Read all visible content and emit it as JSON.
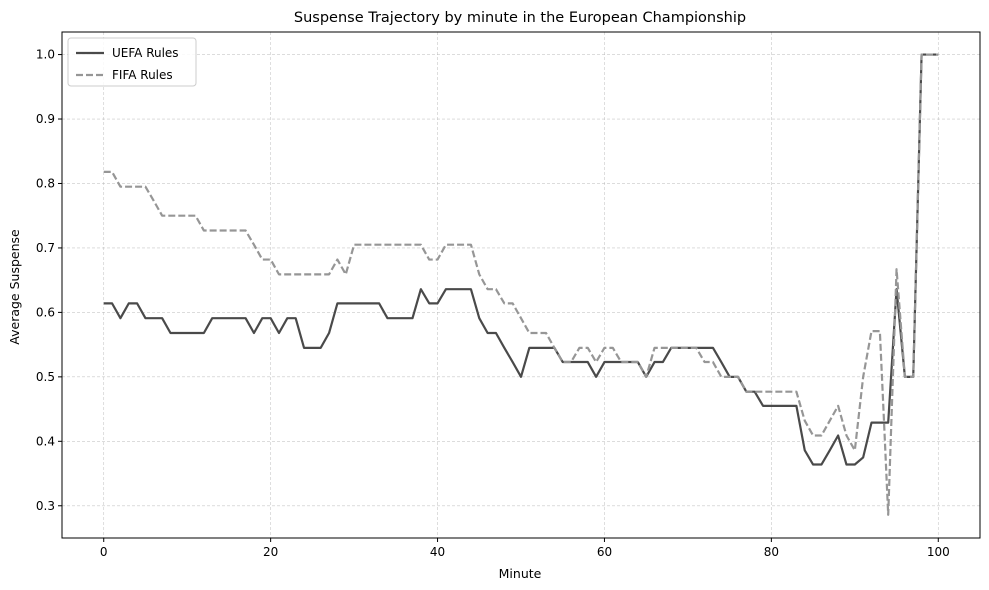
{
  "chart_data": {
    "type": "line",
    "title": "Suspense Trajectory by minute in the European Championship",
    "xlabel": "Minute",
    "ylabel": "Average Suspense",
    "xlim": [
      -5,
      105
    ],
    "ylim": [
      0.25,
      1.035
    ],
    "xticks": [
      0,
      20,
      40,
      60,
      80,
      100
    ],
    "yticks": [
      0.3,
      0.4,
      0.5,
      0.6,
      0.7,
      0.8,
      0.9,
      1.0
    ],
    "ytick_labels": [
      "0.3",
      "0.4",
      "0.5",
      "0.6",
      "0.7",
      "0.8",
      "0.9",
      "1.0"
    ],
    "grid": true,
    "legend_position": "top-left",
    "series": [
      {
        "name": "UEFA Rules",
        "color": "#4a4a4a",
        "style": "solid",
        "points": [
          [
            0,
            0.614
          ],
          [
            1,
            0.614
          ],
          [
            2,
            0.591
          ],
          [
            3,
            0.614
          ],
          [
            4,
            0.614
          ],
          [
            5,
            0.591
          ],
          [
            6,
            0.591
          ],
          [
            7,
            0.591
          ],
          [
            8,
            0.568
          ],
          [
            9,
            0.568
          ],
          [
            10,
            0.568
          ],
          [
            11,
            0.568
          ],
          [
            12,
            0.568
          ],
          [
            13,
            0.591
          ],
          [
            14,
            0.591
          ],
          [
            15,
            0.591
          ],
          [
            16,
            0.591
          ],
          [
            17,
            0.591
          ],
          [
            18,
            0.568
          ],
          [
            19,
            0.591
          ],
          [
            20,
            0.591
          ],
          [
            21,
            0.568
          ],
          [
            22,
            0.591
          ],
          [
            23,
            0.591
          ],
          [
            24,
            0.545
          ],
          [
            25,
            0.545
          ],
          [
            26,
            0.545
          ],
          [
            27,
            0.568
          ],
          [
            28,
            0.614
          ],
          [
            29,
            0.614
          ],
          [
            30,
            0.614
          ],
          [
            31,
            0.614
          ],
          [
            32,
            0.614
          ],
          [
            33,
            0.614
          ],
          [
            34,
            0.591
          ],
          [
            35,
            0.591
          ],
          [
            36,
            0.591
          ],
          [
            37,
            0.591
          ],
          [
            38,
            0.636
          ],
          [
            39,
            0.614
          ],
          [
            40,
            0.614
          ],
          [
            41,
            0.636
          ],
          [
            42,
            0.636
          ],
          [
            43,
            0.636
          ],
          [
            44,
            0.636
          ],
          [
            45,
            0.591
          ],
          [
            46,
            0.568
          ],
          [
            47,
            0.568
          ],
          [
            48,
            0.545
          ],
          [
            49,
            0.523
          ],
          [
            50,
            0.5
          ],
          [
            51,
            0.545
          ],
          [
            52,
            0.545
          ],
          [
            53,
            0.545
          ],
          [
            54,
            0.545
          ],
          [
            55,
            0.523
          ],
          [
            56,
            0.523
          ],
          [
            57,
            0.523
          ],
          [
            58,
            0.523
          ],
          [
            59,
            0.5
          ],
          [
            60,
            0.523
          ],
          [
            61,
            0.523
          ],
          [
            62,
            0.523
          ],
          [
            63,
            0.523
          ],
          [
            64,
            0.523
          ],
          [
            65,
            0.5
          ],
          [
            66,
            0.523
          ],
          [
            67,
            0.523
          ],
          [
            68,
            0.545
          ],
          [
            69,
            0.545
          ],
          [
            70,
            0.545
          ],
          [
            71,
            0.545
          ],
          [
            72,
            0.545
          ],
          [
            73,
            0.545
          ],
          [
            74,
            0.523
          ],
          [
            75,
            0.5
          ],
          [
            76,
            0.5
          ],
          [
            77,
            0.477
          ],
          [
            78,
            0.477
          ],
          [
            79,
            0.455
          ],
          [
            80,
            0.455
          ],
          [
            81,
            0.455
          ],
          [
            82,
            0.455
          ],
          [
            83,
            0.455
          ],
          [
            84,
            0.386
          ],
          [
            85,
            0.364
          ],
          [
            86,
            0.364
          ],
          [
            87,
            0.386
          ],
          [
            88,
            0.409
          ],
          [
            89,
            0.364
          ],
          [
            90,
            0.364
          ],
          [
            91,
            0.375
          ],
          [
            92,
            0.429
          ],
          [
            93,
            0.429
          ],
          [
            94,
            0.429
          ],
          [
            95,
            0.636
          ],
          [
            96,
            0.5
          ],
          [
            97,
            0.5
          ],
          [
            98,
            1.0
          ],
          [
            99,
            1.0
          ],
          [
            100,
            1.0
          ]
        ]
      },
      {
        "name": "FIFA Rules",
        "color": "#969696",
        "style": "dashed",
        "points": [
          [
            0,
            0.818
          ],
          [
            1,
            0.818
          ],
          [
            2,
            0.795
          ],
          [
            3,
            0.795
          ],
          [
            4,
            0.795
          ],
          [
            5,
            0.795
          ],
          [
            6,
            0.773
          ],
          [
            7,
            0.75
          ],
          [
            8,
            0.75
          ],
          [
            9,
            0.75
          ],
          [
            10,
            0.75
          ],
          [
            11,
            0.75
          ],
          [
            12,
            0.727
          ],
          [
            13,
            0.727
          ],
          [
            14,
            0.727
          ],
          [
            15,
            0.727
          ],
          [
            16,
            0.727
          ],
          [
            17,
            0.727
          ],
          [
            18,
            0.705
          ],
          [
            19,
            0.682
          ],
          [
            20,
            0.682
          ],
          [
            21,
            0.659
          ],
          [
            22,
            0.659
          ],
          [
            23,
            0.659
          ],
          [
            24,
            0.659
          ],
          [
            25,
            0.659
          ],
          [
            26,
            0.659
          ],
          [
            27,
            0.659
          ],
          [
            28,
            0.682
          ],
          [
            29,
            0.659
          ],
          [
            30,
            0.705
          ],
          [
            31,
            0.705
          ],
          [
            32,
            0.705
          ],
          [
            33,
            0.705
          ],
          [
            34,
            0.705
          ],
          [
            35,
            0.705
          ],
          [
            36,
            0.705
          ],
          [
            37,
            0.705
          ],
          [
            38,
            0.705
          ],
          [
            39,
            0.682
          ],
          [
            40,
            0.682
          ],
          [
            41,
            0.705
          ],
          [
            42,
            0.705
          ],
          [
            43,
            0.705
          ],
          [
            44,
            0.705
          ],
          [
            45,
            0.659
          ],
          [
            46,
            0.636
          ],
          [
            47,
            0.636
          ],
          [
            48,
            0.614
          ],
          [
            49,
            0.614
          ],
          [
            50,
            0.591
          ],
          [
            51,
            0.568
          ],
          [
            52,
            0.568
          ],
          [
            53,
            0.568
          ],
          [
            54,
            0.545
          ],
          [
            55,
            0.523
          ],
          [
            56,
            0.523
          ],
          [
            57,
            0.545
          ],
          [
            58,
            0.545
          ],
          [
            59,
            0.523
          ],
          [
            60,
            0.545
          ],
          [
            61,
            0.545
          ],
          [
            62,
            0.523
          ],
          [
            63,
            0.523
          ],
          [
            64,
            0.523
          ],
          [
            65,
            0.5
          ],
          [
            66,
            0.545
          ],
          [
            67,
            0.545
          ],
          [
            68,
            0.545
          ],
          [
            69,
            0.545
          ],
          [
            70,
            0.545
          ],
          [
            71,
            0.545
          ],
          [
            72,
            0.523
          ],
          [
            73,
            0.523
          ],
          [
            74,
            0.5
          ],
          [
            75,
            0.5
          ],
          [
            76,
            0.5
          ],
          [
            77,
            0.477
          ],
          [
            78,
            0.477
          ],
          [
            79,
            0.477
          ],
          [
            80,
            0.477
          ],
          [
            81,
            0.477
          ],
          [
            82,
            0.477
          ],
          [
            83,
            0.477
          ],
          [
            84,
            0.432
          ],
          [
            85,
            0.409
          ],
          [
            86,
            0.409
          ],
          [
            87,
            0.432
          ],
          [
            88,
            0.455
          ],
          [
            89,
            0.409
          ],
          [
            90,
            0.386
          ],
          [
            91,
            0.5
          ],
          [
            92,
            0.571
          ],
          [
            93,
            0.571
          ],
          [
            93.5,
            0.43
          ],
          [
            94,
            0.286
          ],
          [
            95,
            0.667
          ],
          [
            96,
            0.5
          ],
          [
            97,
            0.5
          ],
          [
            98,
            1.0
          ],
          [
            99,
            1.0
          ],
          [
            100,
            1.0
          ]
        ]
      }
    ]
  }
}
